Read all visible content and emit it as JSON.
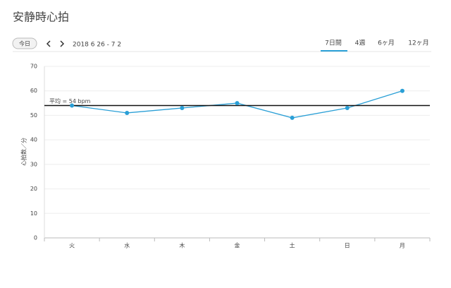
{
  "header": {
    "title": "安静時心拍",
    "today_button": "今日",
    "date_range": "2018 6 26 - 7 2",
    "tabs": [
      "7日間",
      "4週",
      "6ヶ月",
      "12ヶ月"
    ]
  },
  "chart_data": {
    "type": "line",
    "y_label": "心拍数／分",
    "categories": [
      "火",
      "水",
      "木",
      "金",
      "土",
      "日",
      "月"
    ],
    "values": [
      54,
      51,
      53,
      55,
      49,
      53,
      60
    ],
    "color": "#2a9fd6",
    "ylim": [
      0,
      70
    ],
    "yticks": [
      0,
      10,
      20,
      30,
      40,
      50,
      60,
      70
    ],
    "grid": true,
    "average": {
      "value": 54,
      "label": "平均 = 54 bpm"
    }
  }
}
